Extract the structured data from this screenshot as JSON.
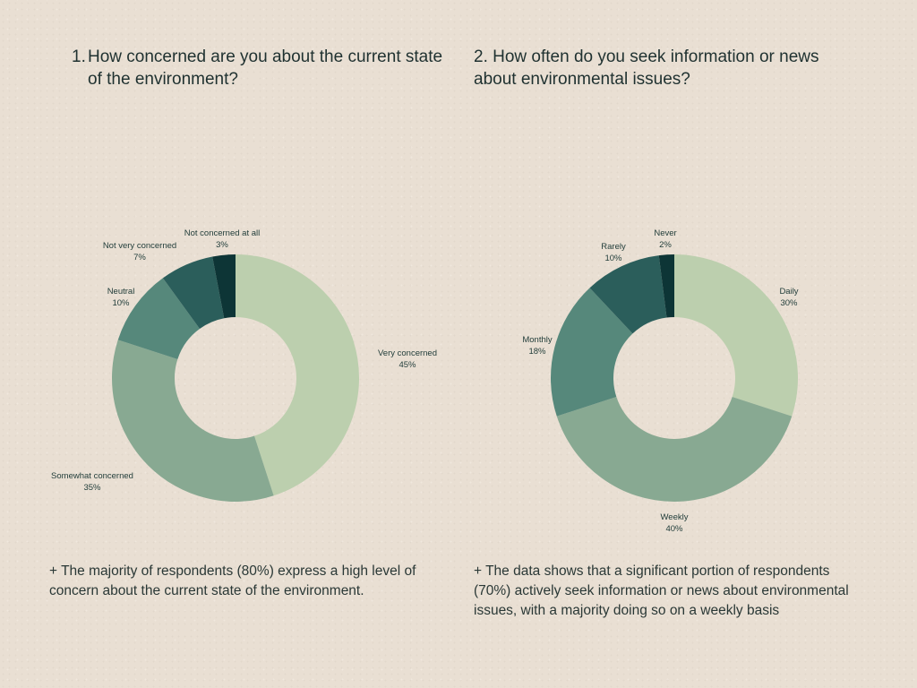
{
  "questions": {
    "q1_number": "1.",
    "q1_text": "How concerned are you about the current state of the environment?",
    "q2_text": "2. How often do you seek information or news about environmental issues?"
  },
  "notes": {
    "note1": "+ The majority of respondents (80%) express a high level of concern about the current state of the environment.",
    "note2": "+ The data shows that a significant portion of respondents (70%) actively seek information or news about environmental issues, with a majority doing so on a weekly basis"
  },
  "chart_data": [
    {
      "type": "pie",
      "style": "donut",
      "title": "How concerned are you about the current state of the environment?",
      "slices": [
        {
          "label": "Very concerned",
          "value": 45,
          "value_label": "45%",
          "color": "#bccfae"
        },
        {
          "label": "Somewhat concerned",
          "value": 35,
          "value_label": "35%",
          "color": "#88a992"
        },
        {
          "label": "Neutral",
          "value": 10,
          "value_label": "10%",
          "color": "#56887b"
        },
        {
          "label": "Not very concerned",
          "value": 7,
          "value_label": "7%",
          "color": "#2b5e5b"
        },
        {
          "label": "Not concerned at all",
          "value": 3,
          "value_label": "3%",
          "color": "#0d3536"
        }
      ]
    },
    {
      "type": "pie",
      "style": "donut",
      "title": "How often do you seek information or news about environmental issues?",
      "slices": [
        {
          "label": "Daily",
          "value": 30,
          "value_label": "30%",
          "color": "#bccfae"
        },
        {
          "label": "Weekly",
          "value": 40,
          "value_label": "40%",
          "color": "#88a992"
        },
        {
          "label": "Monthly",
          "value": 18,
          "value_label": "18%",
          "color": "#56887b"
        },
        {
          "label": "Rarely",
          "value": 10,
          "value_label": "10%",
          "color": "#2b5e5b"
        },
        {
          "label": "Never",
          "value": 2,
          "value_label": "2%",
          "color": "#0d3536"
        }
      ]
    }
  ]
}
